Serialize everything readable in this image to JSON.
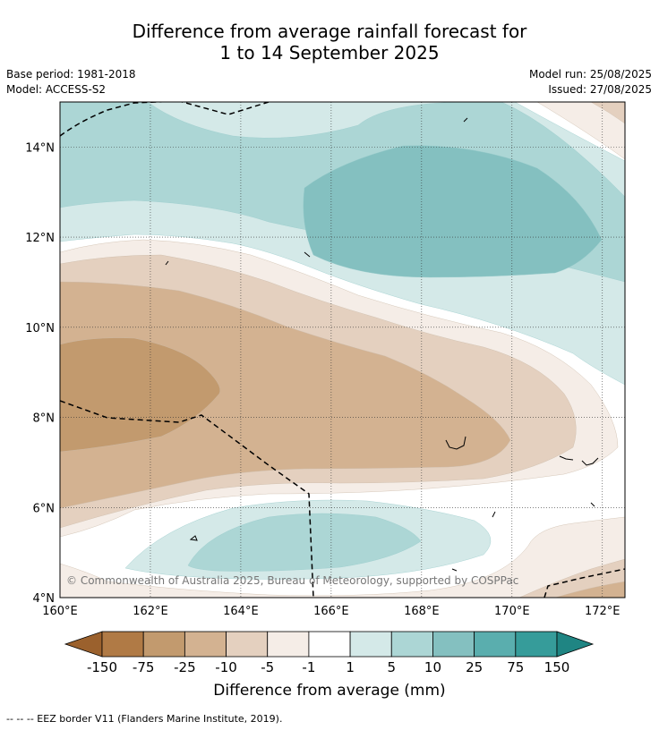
{
  "header": {
    "title_line1": "Difference from average rainfall forecast for",
    "title_line2": "1 to 14 September 2025",
    "base_period": "Base period: 1981-2018",
    "model": "Model: ACCESS-S2",
    "model_run": "Model run: 25/08/2025",
    "issued": "Issued: 27/08/2025"
  },
  "map": {
    "extent": {
      "lon": [
        160,
        172.5
      ],
      "lat": [
        4,
        15
      ]
    },
    "lon_ticks": [
      "160°E",
      "162°E",
      "164°E",
      "166°E",
      "168°E",
      "170°E",
      "172°E"
    ],
    "lat_ticks": [
      "4°N",
      "6°N",
      "8°N",
      "10°N",
      "12°N",
      "14°N"
    ],
    "copyright": "© Commonwealth of Australia 2025, Bureau of Meteorology, supported by COSPPac"
  },
  "colorbar": {
    "title": "Difference from average (mm)",
    "tick_labels": [
      "-150",
      "-75",
      "-25",
      "-10",
      "-5",
      "-1",
      "1",
      "5",
      "10",
      "25",
      "75",
      "150"
    ],
    "colors": [
      "#9b612d",
      "#b07a45",
      "#c29a6e",
      "#d3b291",
      "#e4d0bf",
      "#f5ede7",
      "#ffffff",
      "#d4e9e8",
      "#acd6d5",
      "#84c0c0",
      "#5aaeae",
      "#369c9a",
      "#1f8583"
    ]
  },
  "footnote": "-- -- -- EEZ border V11 (Flanders Marine Institute, 2019)."
}
